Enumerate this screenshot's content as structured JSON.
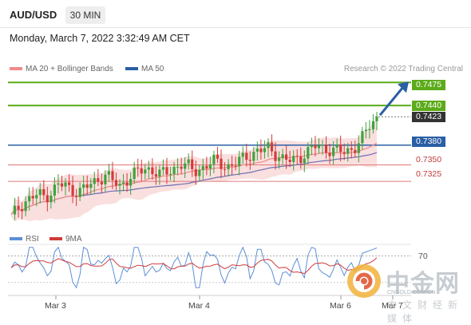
{
  "header": {
    "symbol": "AUD/USD",
    "timeframe": "30 MIN",
    "datetime": "Monday, March 7, 2022 3:32:49 AM CET"
  },
  "legend": {
    "ma20_label": "MA 20 + Bollinger Bands",
    "ma50_label": "MA 50",
    "credit": "Research © 2022 Trading Central"
  },
  "rsi_legend": {
    "rsi_label": "RSI",
    "ma9_label": "9MA",
    "level_label": "70"
  },
  "colors": {
    "green_level": "#5cab1a",
    "blue_level": "#2a5fa5",
    "red_level": "#e07a7a",
    "up_candle": "#3ea33e",
    "down_candle": "#d63a3a",
    "ma20": "#f08a8a",
    "ma50": "#6a6fb0",
    "bollinger_fill": "#f8d4d4",
    "rsi_line": "#5b8fd6",
    "rsi_ma_line": "#d03a3a",
    "arrow": "#2a5fa5"
  },
  "watermark": {
    "cn_title": "中金网",
    "url": "CNGOLD.COM.CN",
    "subtitle": "中文财经新媒体"
  },
  "chart_data": {
    "type": "candlestick",
    "instrument": "AUD/USD",
    "interval": "30 MIN",
    "x_labels": [
      "Mar 3",
      "Mar 4",
      "Mar 6",
      "Mar 7"
    ],
    "price_range": [
      0.7255,
      0.7485
    ],
    "levels": [
      {
        "price": 0.7475,
        "kind": "target",
        "label": "0.7475"
      },
      {
        "price": 0.744,
        "kind": "resistance",
        "label": "0.7440"
      },
      {
        "price": 0.7423,
        "kind": "last",
        "label": "0.7423"
      },
      {
        "price": 0.738,
        "kind": "pivot",
        "label": "0.7380"
      },
      {
        "price": 0.735,
        "kind": "support",
        "label": "0.7350"
      },
      {
        "price": 0.7325,
        "kind": "support",
        "label": "0.7325"
      }
    ],
    "close_path": [
      0.727,
      0.7285,
      0.7295,
      0.73,
      0.7305,
      0.7302,
      0.731,
      0.732,
      0.7318,
      0.7312,
      0.731,
      0.7315,
      0.7322,
      0.733,
      0.7335,
      0.7325,
      0.7318,
      0.7328,
      0.7335,
      0.734,
      0.7345,
      0.7342,
      0.7335,
      0.7338,
      0.7345,
      0.7352,
      0.7348,
      0.734,
      0.7345,
      0.735,
      0.7355,
      0.7352,
      0.7348,
      0.735,
      0.7358,
      0.7365,
      0.737,
      0.7372,
      0.7375,
      0.7368,
      0.736,
      0.7355,
      0.7358,
      0.7365,
      0.7372,
      0.7378,
      0.7376,
      0.7374,
      0.7372,
      0.7368,
      0.7373,
      0.738,
      0.7392,
      0.741,
      0.7423
    ],
    "rsi": {
      "level": 70,
      "range": [
        20,
        85
      ]
    }
  }
}
